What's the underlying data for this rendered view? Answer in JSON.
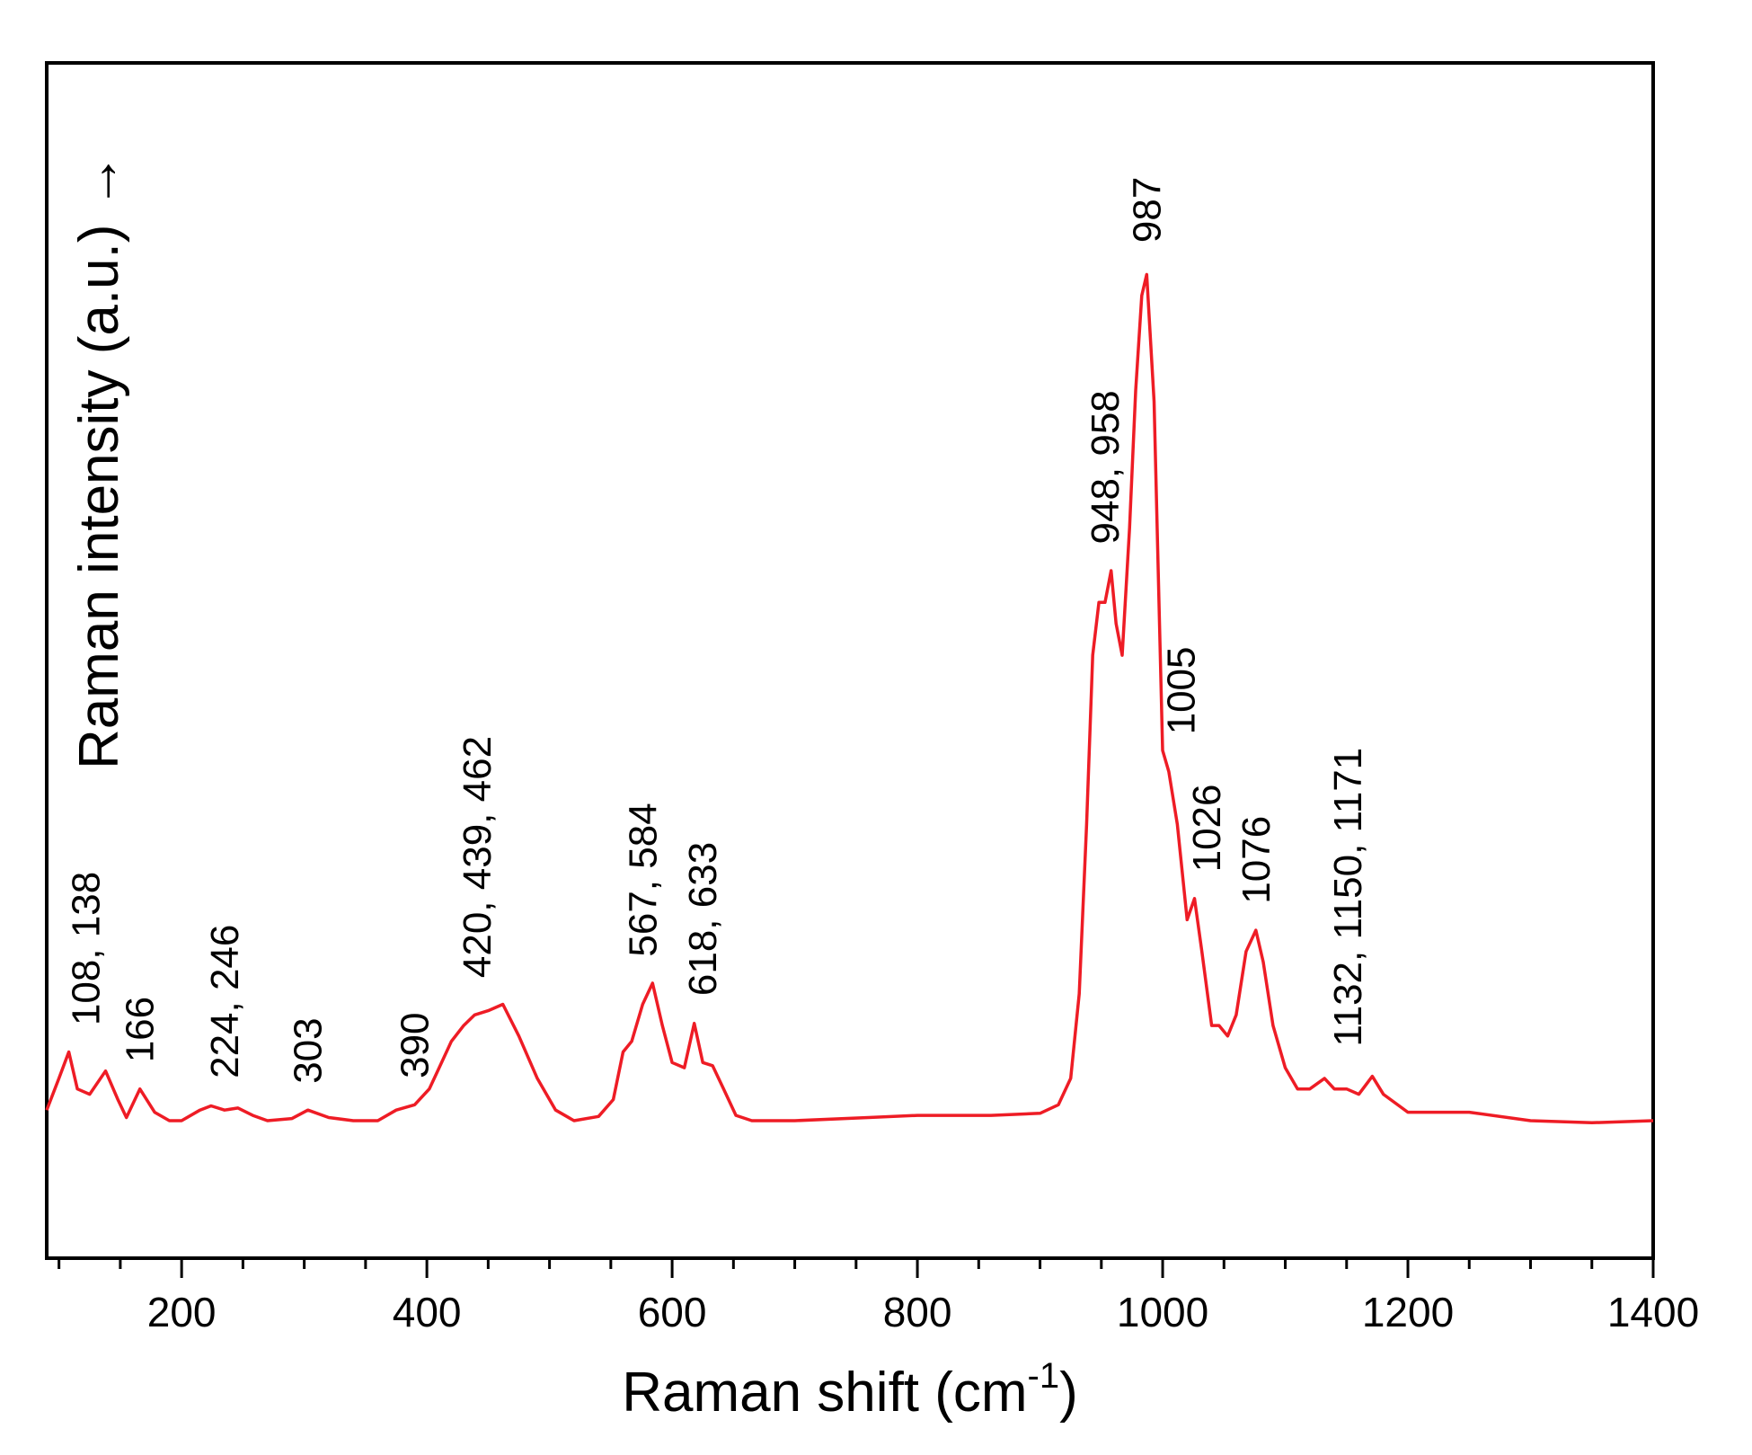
{
  "chart_data": {
    "type": "line",
    "xlabel": "Raman shift (cm",
    "xlabel_sup": "-1",
    "xlabel_end": ")",
    "ylabel": "Raman intensity (a.u.) →",
    "xlim": [
      90,
      1400
    ],
    "ylim": [
      -0.13,
      1.0
    ],
    "grid": false,
    "y_tick_labels": false,
    "x_major_ticks": [
      200,
      400,
      600,
      800,
      1000,
      1200,
      1400
    ],
    "x_minor_step": 50,
    "line_color": "#ee1c25",
    "series": [
      {
        "values": [
          [
            90,
            0.01
          ],
          [
            100,
            0.04
          ],
          [
            108,
            0.065
          ],
          [
            115,
            0.03
          ],
          [
            125,
            0.025
          ],
          [
            138,
            0.047
          ],
          [
            148,
            0.02
          ],
          [
            155,
            0.003
          ],
          [
            166,
            0.03
          ],
          [
            178,
            0.008
          ],
          [
            190,
            0.0
          ],
          [
            200,
            0.0
          ],
          [
            215,
            0.01
          ],
          [
            224,
            0.014
          ],
          [
            235,
            0.01
          ],
          [
            246,
            0.012
          ],
          [
            258,
            0.005
          ],
          [
            270,
            0.0
          ],
          [
            290,
            0.002
          ],
          [
            303,
            0.01
          ],
          [
            320,
            0.003
          ],
          [
            340,
            0.0
          ],
          [
            360,
            0.0
          ],
          [
            375,
            0.01
          ],
          [
            390,
            0.015
          ],
          [
            402,
            0.03
          ],
          [
            410,
            0.05
          ],
          [
            420,
            0.075
          ],
          [
            430,
            0.09
          ],
          [
            439,
            0.1
          ],
          [
            450,
            0.104
          ],
          [
            462,
            0.11
          ],
          [
            475,
            0.08
          ],
          [
            490,
            0.04
          ],
          [
            505,
            0.01
          ],
          [
            520,
            0.0
          ],
          [
            540,
            0.004
          ],
          [
            552,
            0.02
          ],
          [
            560,
            0.065
          ],
          [
            567,
            0.075
          ],
          [
            576,
            0.11
          ],
          [
            584,
            0.13
          ],
          [
            592,
            0.09
          ],
          [
            600,
            0.055
          ],
          [
            610,
            0.05
          ],
          [
            618,
            0.092
          ],
          [
            625,
            0.055
          ],
          [
            633,
            0.052
          ],
          [
            642,
            0.03
          ],
          [
            652,
            0.005
          ],
          [
            665,
            0.0
          ],
          [
            700,
            0.0
          ],
          [
            760,
            0.003
          ],
          [
            800,
            0.005
          ],
          [
            860,
            0.005
          ],
          [
            900,
            0.007
          ],
          [
            915,
            0.015
          ],
          [
            925,
            0.04
          ],
          [
            932,
            0.12
          ],
          [
            938,
            0.28
          ],
          [
            943,
            0.44
          ],
          [
            948,
            0.49
          ],
          [
            953,
            0.49
          ],
          [
            958,
            0.52
          ],
          [
            962,
            0.47
          ],
          [
            967,
            0.44
          ],
          [
            973,
            0.56
          ],
          [
            978,
            0.69
          ],
          [
            983,
            0.78
          ],
          [
            987,
            0.8
          ],
          [
            993,
            0.68
          ],
          [
            1000,
            0.35
          ],
          [
            1005,
            0.33
          ],
          [
            1012,
            0.28
          ],
          [
            1020,
            0.19
          ],
          [
            1026,
            0.21
          ],
          [
            1032,
            0.16
          ],
          [
            1040,
            0.09
          ],
          [
            1046,
            0.09
          ],
          [
            1053,
            0.08
          ],
          [
            1060,
            0.1
          ],
          [
            1068,
            0.16
          ],
          [
            1076,
            0.18
          ],
          [
            1082,
            0.15
          ],
          [
            1090,
            0.09
          ],
          [
            1100,
            0.05
          ],
          [
            1110,
            0.03
          ],
          [
            1120,
            0.03
          ],
          [
            1132,
            0.04
          ],
          [
            1140,
            0.03
          ],
          [
            1150,
            0.03
          ],
          [
            1160,
            0.025
          ],
          [
            1171,
            0.042
          ],
          [
            1180,
            0.025
          ],
          [
            1200,
            0.008
          ],
          [
            1250,
            0.008
          ],
          [
            1300,
            0.0
          ],
          [
            1350,
            -0.002
          ],
          [
            1400,
            0.0
          ]
        ]
      }
    ],
    "annotations": [
      {
        "text": "108, 138",
        "x": 122,
        "y": 0.09
      },
      {
        "text": "166",
        "x": 166,
        "y": 0.055
      },
      {
        "text": "224, 246",
        "x": 235,
        "y": 0.04
      },
      {
        "text": "303",
        "x": 303,
        "y": 0.035
      },
      {
        "text": "390",
        "x": 390,
        "y": 0.04
      },
      {
        "text": "420, 439, 462",
        "x": 441,
        "y": 0.135
      },
      {
        "text": "567, 584",
        "x": 576,
        "y": 0.155
      },
      {
        "text": "618, 633",
        "x": 625,
        "y": 0.118
      },
      {
        "text": "948, 958",
        "x": 953,
        "y": 0.545
      },
      {
        "text": "987",
        "x": 987,
        "y": 0.83
      },
      {
        "text": "1005",
        "x": 1015,
        "y": 0.365
      },
      {
        "text": "1026",
        "x": 1036,
        "y": 0.235
      },
      {
        "text": "1076",
        "x": 1076,
        "y": 0.205
      },
      {
        "text": "1132, 1150, 1171",
        "x": 1151,
        "y": 0.07
      }
    ]
  }
}
